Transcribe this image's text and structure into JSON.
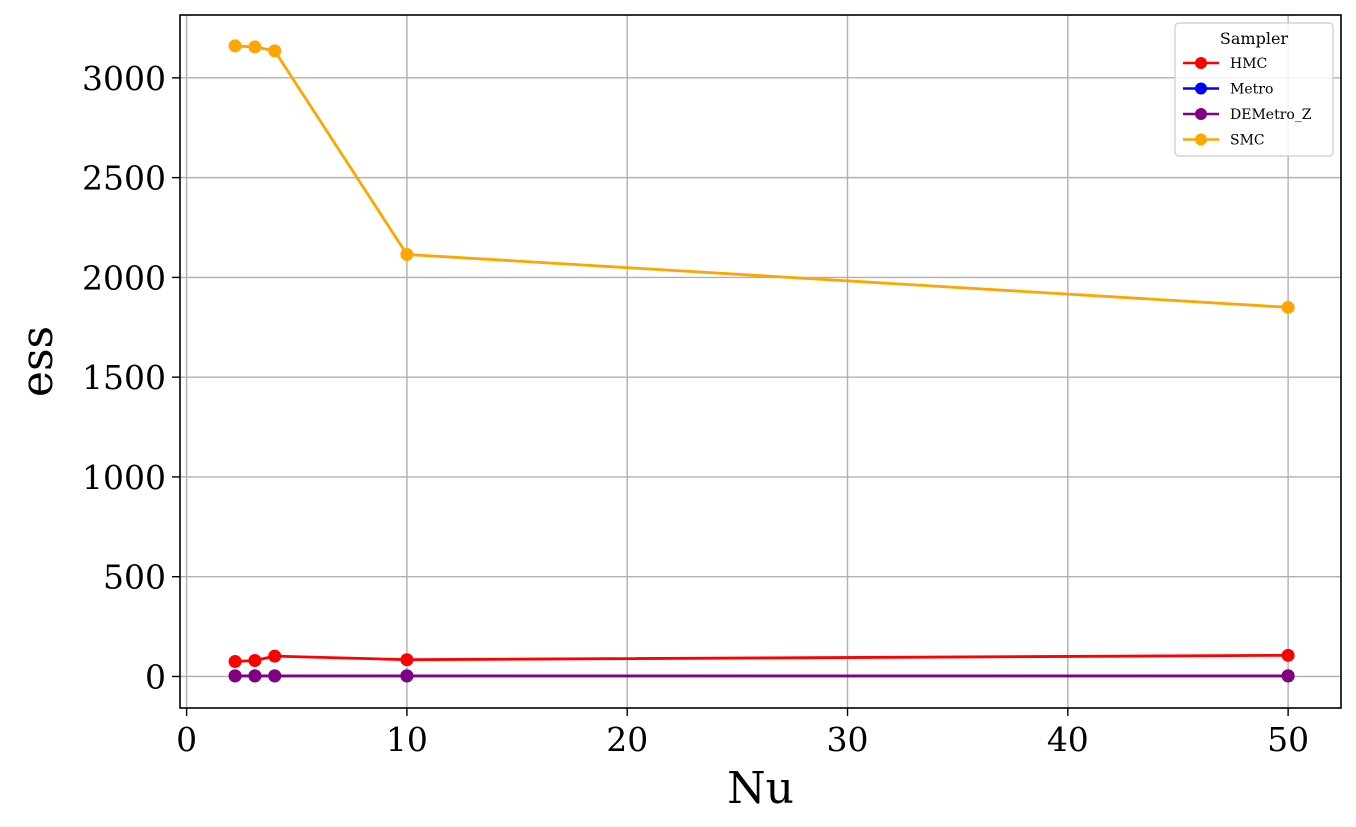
{
  "chart_data": {
    "type": "line",
    "title": "",
    "xlabel": "Nu",
    "ylabel": "ess",
    "xlim": [
      -0.3,
      52.4
    ],
    "ylim": [
      -158,
      3315
    ],
    "xticks": [
      0,
      10,
      20,
      30,
      40,
      50
    ],
    "xtick_labels": [
      "0",
      "10",
      "20",
      "30",
      "40",
      "50"
    ],
    "yticks": [
      0,
      500,
      1000,
      1500,
      2000,
      2500,
      3000
    ],
    "ytick_labels": [
      "0",
      "500",
      "1000",
      "1500",
      "2000",
      "2500",
      "3000"
    ],
    "grid": true,
    "legend": {
      "title": "Sampler",
      "position": "top-right"
    },
    "x": [
      2.2,
      3.1,
      4.0,
      10,
      50
    ],
    "series": [
      {
        "name": "HMC",
        "color": "#ff0000",
        "marker": "circle",
        "values": [
          75,
          80,
          102,
          84,
          106
        ]
      },
      {
        "name": "Metro",
        "color": "#0000ff",
        "marker": "circle",
        "values": [
          3,
          3,
          3,
          3,
          3
        ]
      },
      {
        "name": "DEMetro_Z",
        "color": "#800080",
        "marker": "circle",
        "values": [
          3,
          3,
          3,
          3,
          3
        ]
      },
      {
        "name": "SMC",
        "color": "#ffa500",
        "marker": "circle",
        "values": [
          3160,
          3155,
          3135,
          2115,
          1850
        ]
      }
    ]
  }
}
